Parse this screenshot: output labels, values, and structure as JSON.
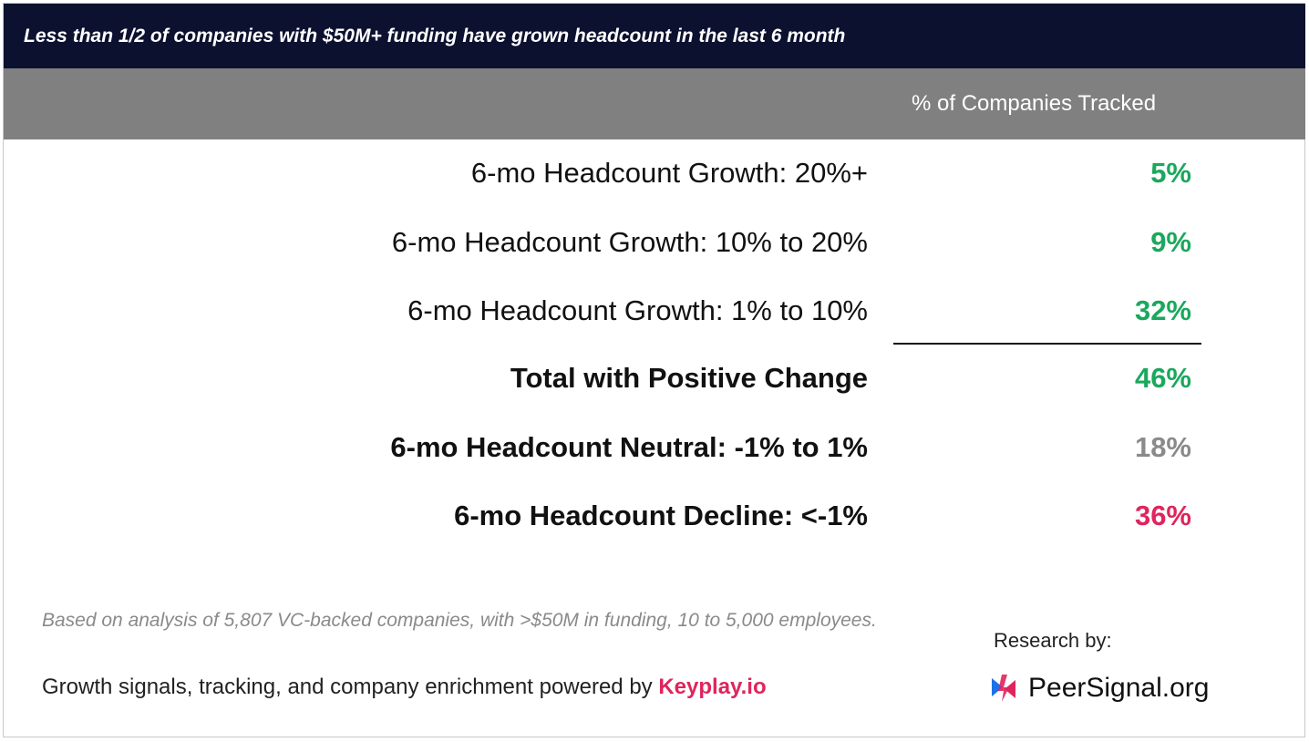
{
  "title": "Less than 1/2 of companies with $50M+ funding have grown headcount in the last 6 month",
  "column_header": "% of Companies Tracked",
  "colors": {
    "title_bg": "#0d1130",
    "header_bg": "#808080",
    "positive": "#1aa85c",
    "neutral": "#8a8a8a",
    "negative": "#e0245e"
  },
  "chart_data": {
    "type": "table",
    "columns": [
      "",
      "% of Companies Tracked"
    ],
    "rows": [
      {
        "label": "6-mo Headcount Growth: 20%+",
        "value": "5%",
        "bold": false,
        "color": "#1aa85c"
      },
      {
        "label": "6-mo Headcount Growth: 10% to 20%",
        "value": "9%",
        "bold": false,
        "color": "#1aa85c"
      },
      {
        "label": "6-mo Headcount Growth: 1% to 10%",
        "value": "32%",
        "bold": false,
        "color": "#1aa85c"
      },
      {
        "label": "Total with Positive Change",
        "value": "46%",
        "bold": true,
        "color": "#1aa85c"
      },
      {
        "label": "6-mo Headcount Neutral: -1% to 1%",
        "value": "18%",
        "bold": true,
        "color": "#8a8a8a"
      },
      {
        "label": "6-mo Headcount Decline: <-1%",
        "value": "36%",
        "bold": true,
        "color": "#e0245e"
      }
    ]
  },
  "footnote": "Based on analysis of 5,807 VC-backed companies, with >$50M in funding, 10 to 5,000 employees.",
  "powered_by": {
    "text": "Growth signals, tracking, and company enrichment powered by ",
    "brand": "Keyplay.io"
  },
  "research": {
    "label": "Research by:",
    "logo_text": "PeerSignal.org",
    "logo_icon": "peersignal-logo-icon"
  }
}
